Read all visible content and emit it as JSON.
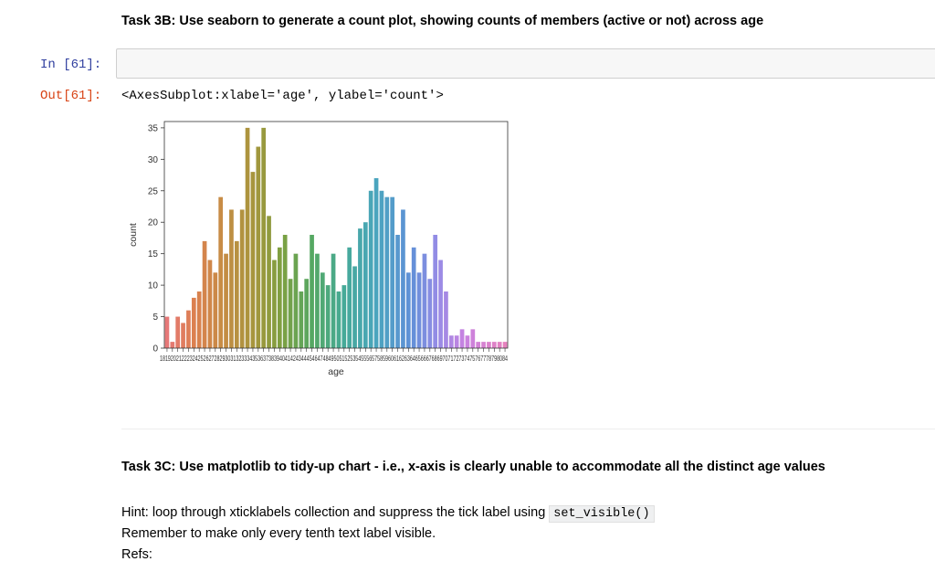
{
  "task3b_heading": "Task 3B: Use seaborn to generate a count plot, showing counts of members (active or not) across age",
  "input_prompt": "In [61]:",
  "code_cell_value": "",
  "output_prompt": "Out[61]:",
  "output_repr": "<AxesSubplot:xlabel='age', ylabel='count'>",
  "task3c_heading": "Task 3C: Use matplotlib to tidy-up chart - i.e., x-axis is clearly unable to accommodate all the distinct age values",
  "hint": {
    "prefix": "Hint: loop through xticklabels collection and suppress the tick label using ",
    "code": "set_visible()"
  },
  "remember": "Remember to make only every tenth text label visible.",
  "refs": "Refs:",
  "chart_data": {
    "type": "bar",
    "xlabel": "age",
    "ylabel": "count",
    "ylim": [
      0,
      36
    ],
    "yticks": [
      0,
      5,
      10,
      15,
      20,
      25,
      30,
      35
    ],
    "xtick_text": "18192021222324252627282930313233343536373839404142434445464748495051525354555657585960616263646566676869707172737475767778798084",
    "categories": [
      "18",
      "19",
      "20",
      "21",
      "22",
      "23",
      "24",
      "25",
      "26",
      "27",
      "28",
      "29",
      "30",
      "31",
      "32",
      "33",
      "34",
      "35",
      "36",
      "37",
      "38",
      "39",
      "40",
      "41",
      "42",
      "43",
      "44",
      "45",
      "46",
      "47",
      "48",
      "49",
      "50",
      "51",
      "52",
      "53",
      "54",
      "55",
      "56",
      "57",
      "58",
      "59",
      "60",
      "61",
      "62",
      "63",
      "64",
      "65",
      "66",
      "67",
      "68",
      "69",
      "70",
      "71",
      "72",
      "73",
      "74",
      "75",
      "76",
      "77",
      "78",
      "79",
      "80",
      "84"
    ],
    "values": [
      5,
      1,
      5,
      4,
      6,
      8,
      9,
      17,
      14,
      12,
      24,
      15,
      22,
      17,
      22,
      35,
      28,
      32,
      35,
      21,
      14,
      16,
      18,
      11,
      15,
      9,
      11,
      18,
      15,
      12,
      10,
      15,
      9,
      10,
      16,
      13,
      19,
      20,
      25,
      27,
      25,
      24,
      24,
      18,
      22,
      12,
      16,
      12,
      15,
      11,
      18,
      14,
      9,
      2,
      2,
      3,
      2,
      3,
      1,
      1,
      1,
      1,
      1,
      1
    ],
    "grid": false,
    "palette": "husl gradient (red → orange → olive → green → teal → blue → purple → pink)"
  }
}
